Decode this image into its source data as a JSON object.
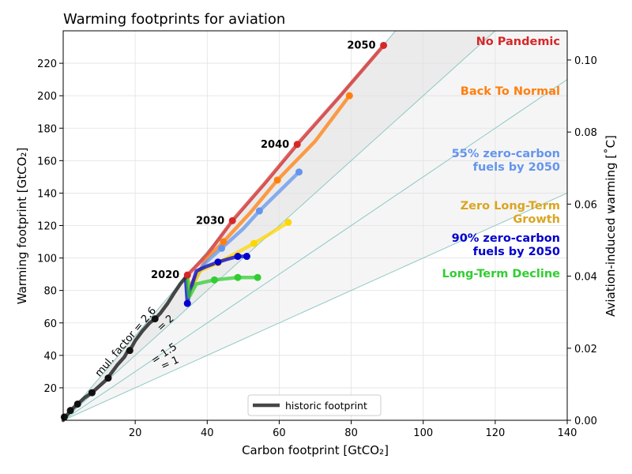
{
  "chart_data": {
    "type": "line",
    "title": "Warming footprints for aviation",
    "xlabel": "Carbon footprint [GtCO₂]",
    "ylabel": "Warming footprint [GtCO₂]",
    "y2label": "Aviation-induced warming [˚C]",
    "xlim": [
      0,
      140
    ],
    "ylim": [
      0,
      240
    ],
    "y2lim": [
      0,
      0.1081
    ],
    "x_ticks": [
      20,
      40,
      60,
      80,
      100,
      120,
      140
    ],
    "y_ticks": [
      20,
      40,
      60,
      80,
      100,
      120,
      140,
      160,
      180,
      200,
      220
    ],
    "y2_ticks": [
      "0.00",
      "0.02",
      "0.04",
      "0.06",
      "0.08",
      "0.10"
    ],
    "y2_tick_values": [
      0.0,
      0.02,
      0.04,
      0.06,
      0.08,
      0.1
    ],
    "grid": true,
    "multiplication_factors": [
      {
        "factor": 2.6,
        "label": "mul. factor = 2.6"
      },
      {
        "factor": 2,
        "label": "= 2"
      },
      {
        "factor": 1.5,
        "label": "= 1.5"
      },
      {
        "factor": 1,
        "label": "= 1"
      }
    ],
    "historic": {
      "name": "historic footprint",
      "color": "#333333",
      "x": [
        0,
        0.5,
        1,
        2,
        3,
        4,
        6,
        8,
        10,
        12,
        13,
        15,
        17,
        18,
        19,
        20,
        22,
        24,
        25.5,
        27,
        29,
        31,
        32.5,
        34
      ],
      "y": [
        0,
        2,
        3,
        6,
        8,
        10,
        14,
        17,
        21,
        25,
        28,
        34,
        39,
        43,
        45,
        49,
        55,
        60,
        62.5,
        66,
        72,
        79,
        84,
        88
      ],
      "marker_x": [
        0.3,
        2,
        4,
        8,
        12.5,
        18.5,
        25.5
      ],
      "marker_y": [
        2,
        6,
        10,
        17,
        26,
        43,
        62.5
      ]
    },
    "series": [
      {
        "name": "No Pandemic",
        "color": "#d62728",
        "x": [
          34.5,
          40,
          47,
          56,
          65,
          77,
          89
        ],
        "y": [
          89.5,
          102,
          123,
          146,
          170,
          200,
          231
        ],
        "marker_x": [
          34.5,
          47,
          65,
          89
        ],
        "marker_y": [
          89.5,
          123,
          170,
          231
        ]
      },
      {
        "name": "Back To Normal",
        "color": "#ff7f0e",
        "x": [
          34.5,
          35,
          40,
          44.5,
          52,
          59.5,
          70,
          79.5
        ],
        "y": [
          88,
          82,
          100,
          110,
          128,
          148,
          172,
          200
        ],
        "marker_x": [
          44.5,
          59.5,
          79.5
        ],
        "marker_y": [
          110,
          148,
          200
        ]
      },
      {
        "name": "55% zero-carbon fuels by 2050",
        "color": "#6495ed",
        "x": [
          34.5,
          35,
          39,
          44,
          50,
          54.5,
          60,
          65.5
        ],
        "y": [
          88,
          80,
          96,
          106,
          118,
          129,
          141,
          153
        ],
        "marker_x": [
          44,
          54.5,
          65.5
        ],
        "marker_y": [
          106,
          129,
          153
        ]
      },
      {
        "name": "Zero Long-Term Growth",
        "color": "#daa520",
        "line_color": "#ffd700",
        "x": [
          34.5,
          35,
          38,
          43,
          48,
          53,
          57.5,
          62.5
        ],
        "y": [
          88,
          78,
          92,
          97,
          103,
          109,
          115,
          122
        ],
        "marker_x": [
          43,
          53,
          62.5
        ],
        "marker_y": [
          97,
          109,
          122
        ]
      },
      {
        "name": "90% zero-carbon fuels by 2050",
        "color": "#0000cd",
        "x": [
          34,
          34.5,
          35,
          37,
          40,
          43,
          46,
          48.5,
          51
        ],
        "y": [
          88,
          72,
          78,
          92,
          95,
          97.5,
          99.5,
          101,
          101
        ],
        "marker_x": [
          34.5,
          43,
          48.5,
          51
        ],
        "marker_y": [
          72,
          97.5,
          101,
          101
        ]
      },
      {
        "name": "Long-Term Decline",
        "color": "#32cd32",
        "x": [
          34.5,
          35,
          37,
          42,
          48.5,
          54
        ],
        "y": [
          88,
          76,
          84,
          86.5,
          88,
          88
        ],
        "marker_x": [
          42,
          48.5,
          54
        ],
        "marker_y": [
          86.5,
          88,
          88
        ]
      }
    ],
    "scenario_labels": [
      {
        "lines": [
          "No Pandemic"
        ],
        "color": "#d62728",
        "row": 0
      },
      {
        "lines": [
          "Back To Normal"
        ],
        "color": "#ff7f0e",
        "row": 1
      },
      {
        "lines": [
          "55% zero-carbon",
          "fuels by 2050"
        ],
        "color": "#6495ed",
        "row": 2
      },
      {
        "lines": [
          "Zero Long-Term",
          "Growth"
        ],
        "color": "#daa520",
        "row": 3
      },
      {
        "lines": [
          "90% zero-carbon",
          "fuels by 2050"
        ],
        "color": "#0000cd",
        "row": 4
      },
      {
        "lines": [
          "Long-Term Decline"
        ],
        "color": "#32cd32",
        "row": 5
      }
    ],
    "year_labels": [
      {
        "text": "2020",
        "x": 34.5,
        "y": 89.5
      },
      {
        "text": "2030",
        "x": 47,
        "y": 123
      },
      {
        "text": "2040",
        "x": 65,
        "y": 170
      },
      {
        "text": "2050",
        "x": 89,
        "y": 231
      }
    ],
    "legend": {
      "position": "bottom-center",
      "label": "historic footprint"
    }
  }
}
